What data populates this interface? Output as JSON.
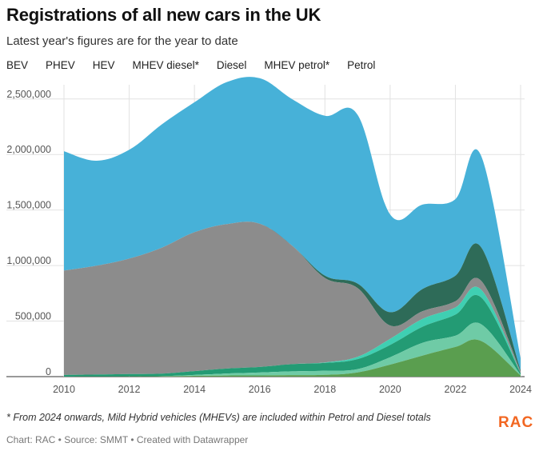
{
  "header": {
    "title": "Registrations of all new cars in the UK",
    "subtitle": "Latest year's figures are for the year to date"
  },
  "footer": {
    "note": "* From 2024 onwards, Mild Hybrid vehicles (MHEVs) are included within Petrol and Diesel totals",
    "credit": "Chart: RAC • Source: SMMT • Created with Datawrapper",
    "logo_text": "RAC"
  },
  "colors": {
    "BEV": "#5a9e4f",
    "PHEV": "#6fcba6",
    "HEV": "#239b74",
    "MHEV diesel*": "#3fcfb2",
    "Diesel": "#8c8c8c",
    "MHEV petrol*": "#2e6b58",
    "Petrol": "#47b1d8",
    "grid": "#e2e2e2",
    "logo": "#f26722"
  },
  "chart_data": {
    "type": "area",
    "stacked": true,
    "title": "Registrations of all new cars in the UK",
    "subtitle": "Latest year's figures are for the year to date",
    "x": [
      2010,
      2011,
      2012,
      2013,
      2014,
      2015,
      2016,
      2017,
      2018,
      2019,
      2020,
      2021,
      2022,
      2022.8,
      2024
    ],
    "x_ticks": [
      "2010",
      "2012",
      "2014",
      "2016",
      "2018",
      "2020",
      "2022",
      "2024"
    ],
    "y_ticks": [
      "0",
      "500,000",
      "1,000,000",
      "1,500,000",
      "2,000,000",
      "2,500,000"
    ],
    "ylim": [
      0,
      2700000
    ],
    "xlim": [
      2010,
      2024
    ],
    "legend_position": "top",
    "grid": true,
    "series": [
      {
        "name": "BEV",
        "values": [
          0,
          1000,
          2000,
          3500,
          7000,
          10000,
          11000,
          13600,
          15500,
          38000,
          108000,
          190000,
          267000,
          320000,
          10000
        ]
      },
      {
        "name": "PHEV",
        "values": [
          0,
          0,
          1000,
          1000,
          8000,
          18000,
          26000,
          34000,
          38000,
          30000,
          67000,
          115000,
          101000,
          150000,
          6000
        ]
      },
      {
        "name": "HEV",
        "values": [
          15000,
          18000,
          20000,
          22000,
          35000,
          45000,
          50000,
          65000,
          70000,
          90000,
          110000,
          145000,
          190000,
          240000,
          15000
        ]
      },
      {
        "name": "MHEV diesel*",
        "values": [
          0,
          0,
          0,
          0,
          0,
          0,
          0,
          0,
          5000,
          20000,
          55000,
          70000,
          65000,
          70000,
          0
        ]
      },
      {
        "name": "Diesel",
        "values": [
          940000,
          980000,
          1040000,
          1135000,
          1250000,
          1300000,
          1290000,
          1065000,
          760000,
          620000,
          120000,
          70000,
          55000,
          80000,
          15000
        ]
      },
      {
        "name": "MHEV petrol*",
        "values": [
          0,
          0,
          0,
          0,
          0,
          0,
          0,
          0,
          20000,
          40000,
          120000,
          200000,
          230000,
          300000,
          10000
        ]
      },
      {
        "name": "Petrol",
        "values": [
          1075000,
          945000,
          980000,
          1110000,
          1170000,
          1280000,
          1310000,
          1320000,
          1440000,
          1520000,
          880000,
          760000,
          690000,
          820000,
          110000
        ]
      }
    ]
  }
}
